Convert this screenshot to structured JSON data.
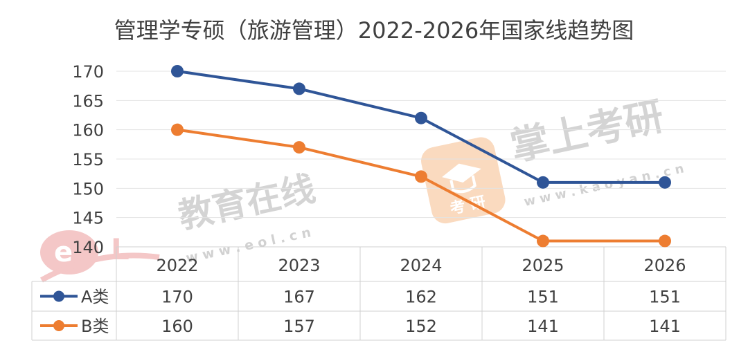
{
  "chart_data": {
    "type": "line",
    "title": "管理学专硕（旅游管理）2022-2026年国家线趋势图",
    "categories": [
      "2022",
      "2023",
      "2024",
      "2025",
      "2026"
    ],
    "ylim": [
      140,
      170
    ],
    "yticks": [
      170,
      165,
      160,
      155,
      150,
      145,
      140
    ],
    "grid": true,
    "legend": "data-table-left",
    "series": [
      {
        "name": "A类",
        "values": [
          170,
          167,
          162,
          151,
          151
        ],
        "color": "#2F5597"
      },
      {
        "name": "B类",
        "values": [
          160,
          157,
          152,
          141,
          141
        ],
        "color": "#ED7D31"
      }
    ]
  },
  "watermarks": {
    "eol_cn": "教育在线",
    "eol_url": "w w w . e o l . c n",
    "kaoyan_cn": "掌上考研",
    "kaoyan_url": "w w w . k a o y a n . c n",
    "kaoyan_logo_text": "考 研"
  }
}
